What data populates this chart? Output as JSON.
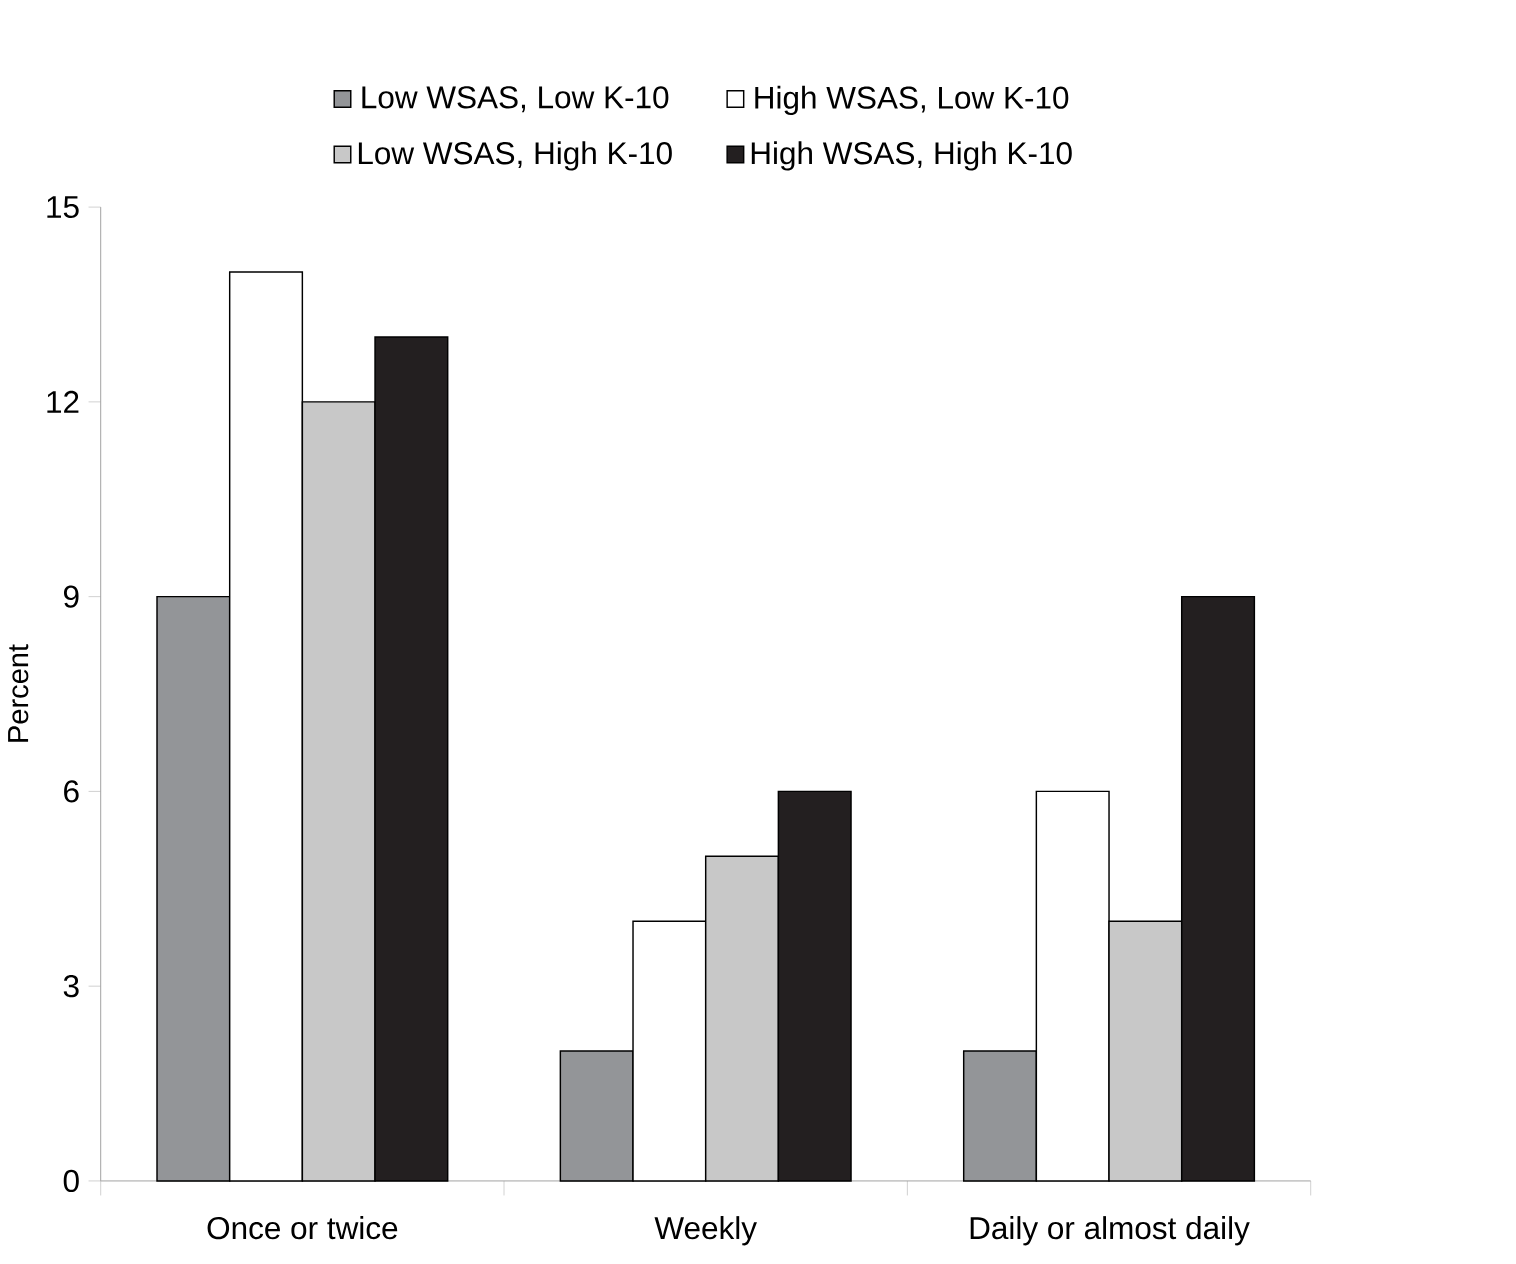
{
  "chart_data": {
    "type": "bar",
    "ylabel": "Percent",
    "categories": [
      "Once or twice",
      "Weekly",
      "Daily or almost daily"
    ],
    "series": [
      {
        "name": "Low WSAS, Low K-10",
        "color": "#939598",
        "values": [
          9,
          2,
          2
        ]
      },
      {
        "name": "High WSAS, Low K-10",
        "color": "#ffffff",
        "values": [
          14,
          4,
          6
        ]
      },
      {
        "name": "Low WSAS, High K-10",
        "color": "#c8c8c8",
        "values": [
          12,
          5,
          4
        ]
      },
      {
        "name": "High WSAS, High K-10",
        "color": "#231f20",
        "values": [
          13,
          6,
          9
        ]
      }
    ],
    "ylim": [
      0,
      15
    ],
    "yticks": [
      0,
      3,
      6,
      9,
      12,
      15
    ],
    "grid": false,
    "legend": "top"
  }
}
